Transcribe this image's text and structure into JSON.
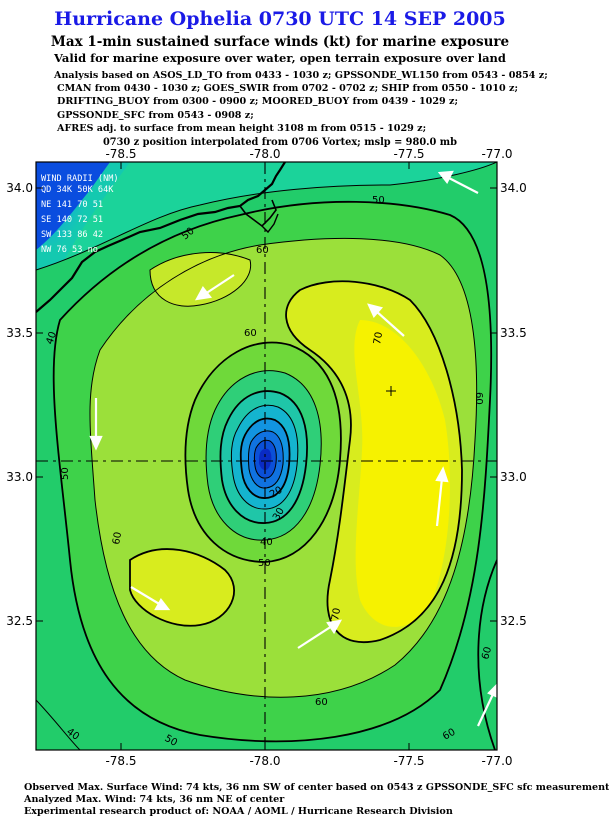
{
  "header": {
    "title": "Hurricane Ophelia 0730 UTC 14 SEP 2005",
    "subtitle": "Max 1-min sustained surface winds (kt) for marine exposure",
    "subtitle2": "Valid for marine exposure over water, open terrain exposure over land"
  },
  "analysis_lines": [
    "Analysis based on  ASOS_LD_TO from 0433 - 1030 z;  GPSSONDE_WL150 from 0543 - 0854 z;",
    "CMAN from 0430 - 1030 z;  GOES_SWIR from 0702 - 0702 z;  SHIP from 0550 - 1010 z;",
    "DRIFTING_BUOY from 0300 - 0900 z;  MOORED_BUOY from 0439 - 1029 z;",
    "GPSSONDE_SFC from 0543 - 0908 z;",
    "AFRES adj. to surface from mean height 3108 m from 0515 - 1029 z;"
  ],
  "interpolation_note": "0730 z position interpolated from 0706 Vortex; mslp = 980.0 mb",
  "map": {
    "lon_ticks": [
      "-78.5",
      "-78.0",
      "-77.5",
      "-77.0"
    ],
    "lat_ticks": [
      "34.0",
      "33.5",
      "33.0",
      "32.5"
    ],
    "center": {
      "lon": -78.0,
      "lat": 33.05
    },
    "contour_labels": [
      "50",
      "50",
      "40",
      "60",
      "60",
      "70",
      "60",
      "50",
      "40",
      "30",
      "20",
      "60",
      "50",
      "60",
      "70",
      "60",
      "50",
      "40",
      "60"
    ],
    "wind_radii": {
      "title": "WIND RADII (NM)",
      "header": "QD 34K 50K 64K",
      "rows": [
        "NE 141  70  51",
        "SE 140  72  51",
        "SW 133  86  42",
        "NW  76  53  no"
      ]
    },
    "colors": {
      "low": "#0a3fd6",
      "mid": "#2fd05a",
      "high": "#f5f300"
    }
  },
  "footer": {
    "observed": "Observed Max. Surface Wind: 74 kts, 36 nm SW of center based on 0543 z GPSSONDE_SFC sfc measurement",
    "analyzed": "Analyzed Max. Wind: 74 kts, 36 nm NE of center",
    "credit": "Experimental research product of: NOAA / AOML / Hurricane Research Division"
  }
}
